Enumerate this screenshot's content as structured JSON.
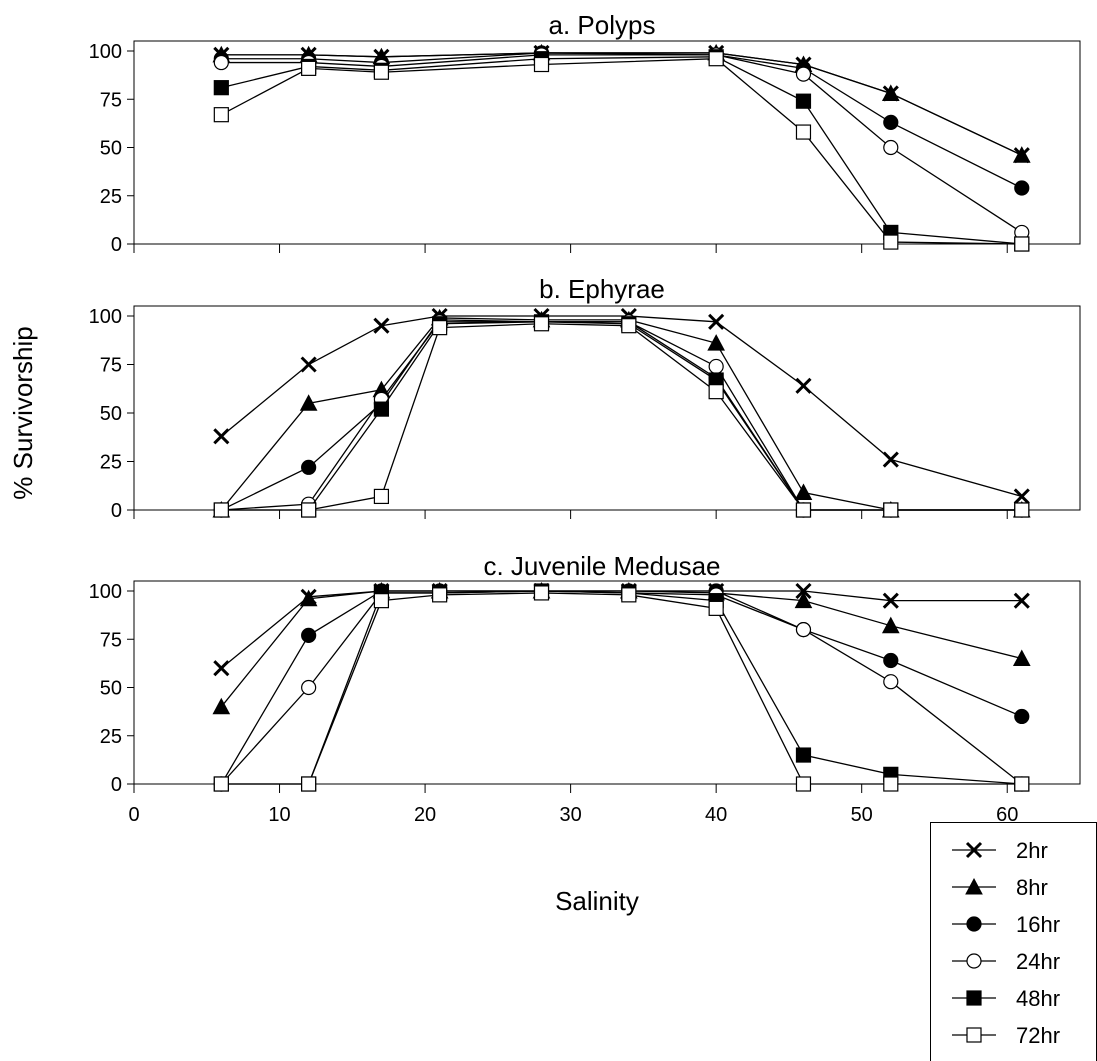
{
  "figure": {
    "ylabel": "% Survivorship",
    "xlabel": "Salinity",
    "xlim": [
      0,
      65
    ],
    "x_ticks": [
      0,
      10,
      20,
      30,
      40,
      50,
      60
    ],
    "x_tick_labels": [
      "0",
      "10",
      "20",
      "30",
      "40",
      "50",
      "60"
    ],
    "ylim": [
      0,
      100
    ],
    "y_ticks": [
      0,
      25,
      50,
      75,
      100
    ],
    "y_tick_labels": [
      "0",
      "25",
      "50",
      "75",
      "100"
    ],
    "grid": false,
    "legend_placement": "bottom-right",
    "line_color": "#000000"
  },
  "legend": [
    {
      "name": "2hr",
      "marker": "x"
    },
    {
      "name": "8hr",
      "marker": "triangle-filled"
    },
    {
      "name": "16hr",
      "marker": "circle-filled"
    },
    {
      "name": "24hr",
      "marker": "circle-open"
    },
    {
      "name": "48hr",
      "marker": "square-filled"
    },
    {
      "name": "72hr",
      "marker": "square-open"
    }
  ],
  "chart_data": [
    {
      "type": "line",
      "title": "a. Polyps",
      "x": [
        6,
        12,
        17,
        28,
        40,
        46,
        52,
        61
      ],
      "series": [
        {
          "name": "2hr",
          "marker": "x",
          "values": [
            98,
            98,
            97,
            99,
            99,
            93,
            78,
            46
          ]
        },
        {
          "name": "8hr",
          "marker": "triangle-filled",
          "values": [
            98,
            98,
            97,
            99,
            99,
            93,
            78,
            46
          ]
        },
        {
          "name": "16hr",
          "marker": "circle-filled",
          "values": [
            96,
            96,
            94,
            99,
            98,
            91,
            63,
            29
          ]
        },
        {
          "name": "24hr",
          "marker": "circle-open",
          "values": [
            94,
            94,
            92,
            98,
            98,
            88,
            50,
            6
          ]
        },
        {
          "name": "48hr",
          "marker": "square-filled",
          "values": [
            81,
            92,
            90,
            96,
            97,
            74,
            6,
            0
          ]
        },
        {
          "name": "72hr",
          "marker": "square-open",
          "values": [
            67,
            91,
            89,
            93,
            96,
            58,
            1,
            0
          ]
        }
      ]
    },
    {
      "type": "line",
      "title": "b. Ephyrae",
      "x": [
        6,
        12,
        17,
        21,
        28,
        34,
        40,
        46,
        52,
        61
      ],
      "series": [
        {
          "name": "2hr",
          "marker": "x",
          "values": [
            38,
            75,
            95,
            100,
            100,
            100,
            97,
            64,
            26,
            7
          ]
        },
        {
          "name": "8hr",
          "marker": "triangle-filled",
          "values": [
            0,
            55,
            62,
            99,
            98,
            98,
            86,
            9,
            0,
            0
          ]
        },
        {
          "name": "16hr",
          "marker": "circle-filled",
          "values": [
            0,
            22,
            55,
            98,
            97,
            97,
            68,
            0,
            0,
            0
          ]
        },
        {
          "name": "24hr",
          "marker": "circle-open",
          "values": [
            0,
            3,
            57,
            97,
            97,
            97,
            74,
            0,
            0,
            0
          ]
        },
        {
          "name": "48hr",
          "marker": "square-filled",
          "values": [
            0,
            0,
            52,
            96,
            97,
            96,
            67,
            0,
            0,
            0
          ]
        },
        {
          "name": "72hr",
          "marker": "square-open",
          "values": [
            0,
            0,
            7,
            94,
            96,
            95,
            61,
            0,
            0,
            0
          ]
        }
      ]
    },
    {
      "type": "line",
      "title": "c. Juvenile Medusae",
      "x": [
        6,
        12,
        17,
        21,
        28,
        34,
        40,
        46,
        52,
        61
      ],
      "series": [
        {
          "name": "2hr",
          "marker": "x",
          "values": [
            60,
            97,
            100,
            100,
            100,
            100,
            100,
            100,
            95,
            95
          ]
        },
        {
          "name": "8hr",
          "marker": "triangle-filled",
          "values": [
            40,
            96,
            100,
            100,
            100,
            100,
            99,
            95,
            82,
            65
          ]
        },
        {
          "name": "16hr",
          "marker": "circle-filled",
          "values": [
            0,
            77,
            100,
            100,
            100,
            100,
            100,
            80,
            64,
            35
          ]
        },
        {
          "name": "24hr",
          "marker": "circle-open",
          "values": [
            0,
            50,
            99,
            99,
            100,
            99,
            98,
            80,
            53,
            0
          ]
        },
        {
          "name": "48hr",
          "marker": "square-filled",
          "values": [
            0,
            0,
            99,
            99,
            100,
            99,
            95,
            15,
            5,
            0
          ]
        },
        {
          "name": "72hr",
          "marker": "square-open",
          "values": [
            0,
            0,
            95,
            98,
            99,
            98,
            91,
            0,
            0,
            0
          ]
        }
      ]
    }
  ]
}
